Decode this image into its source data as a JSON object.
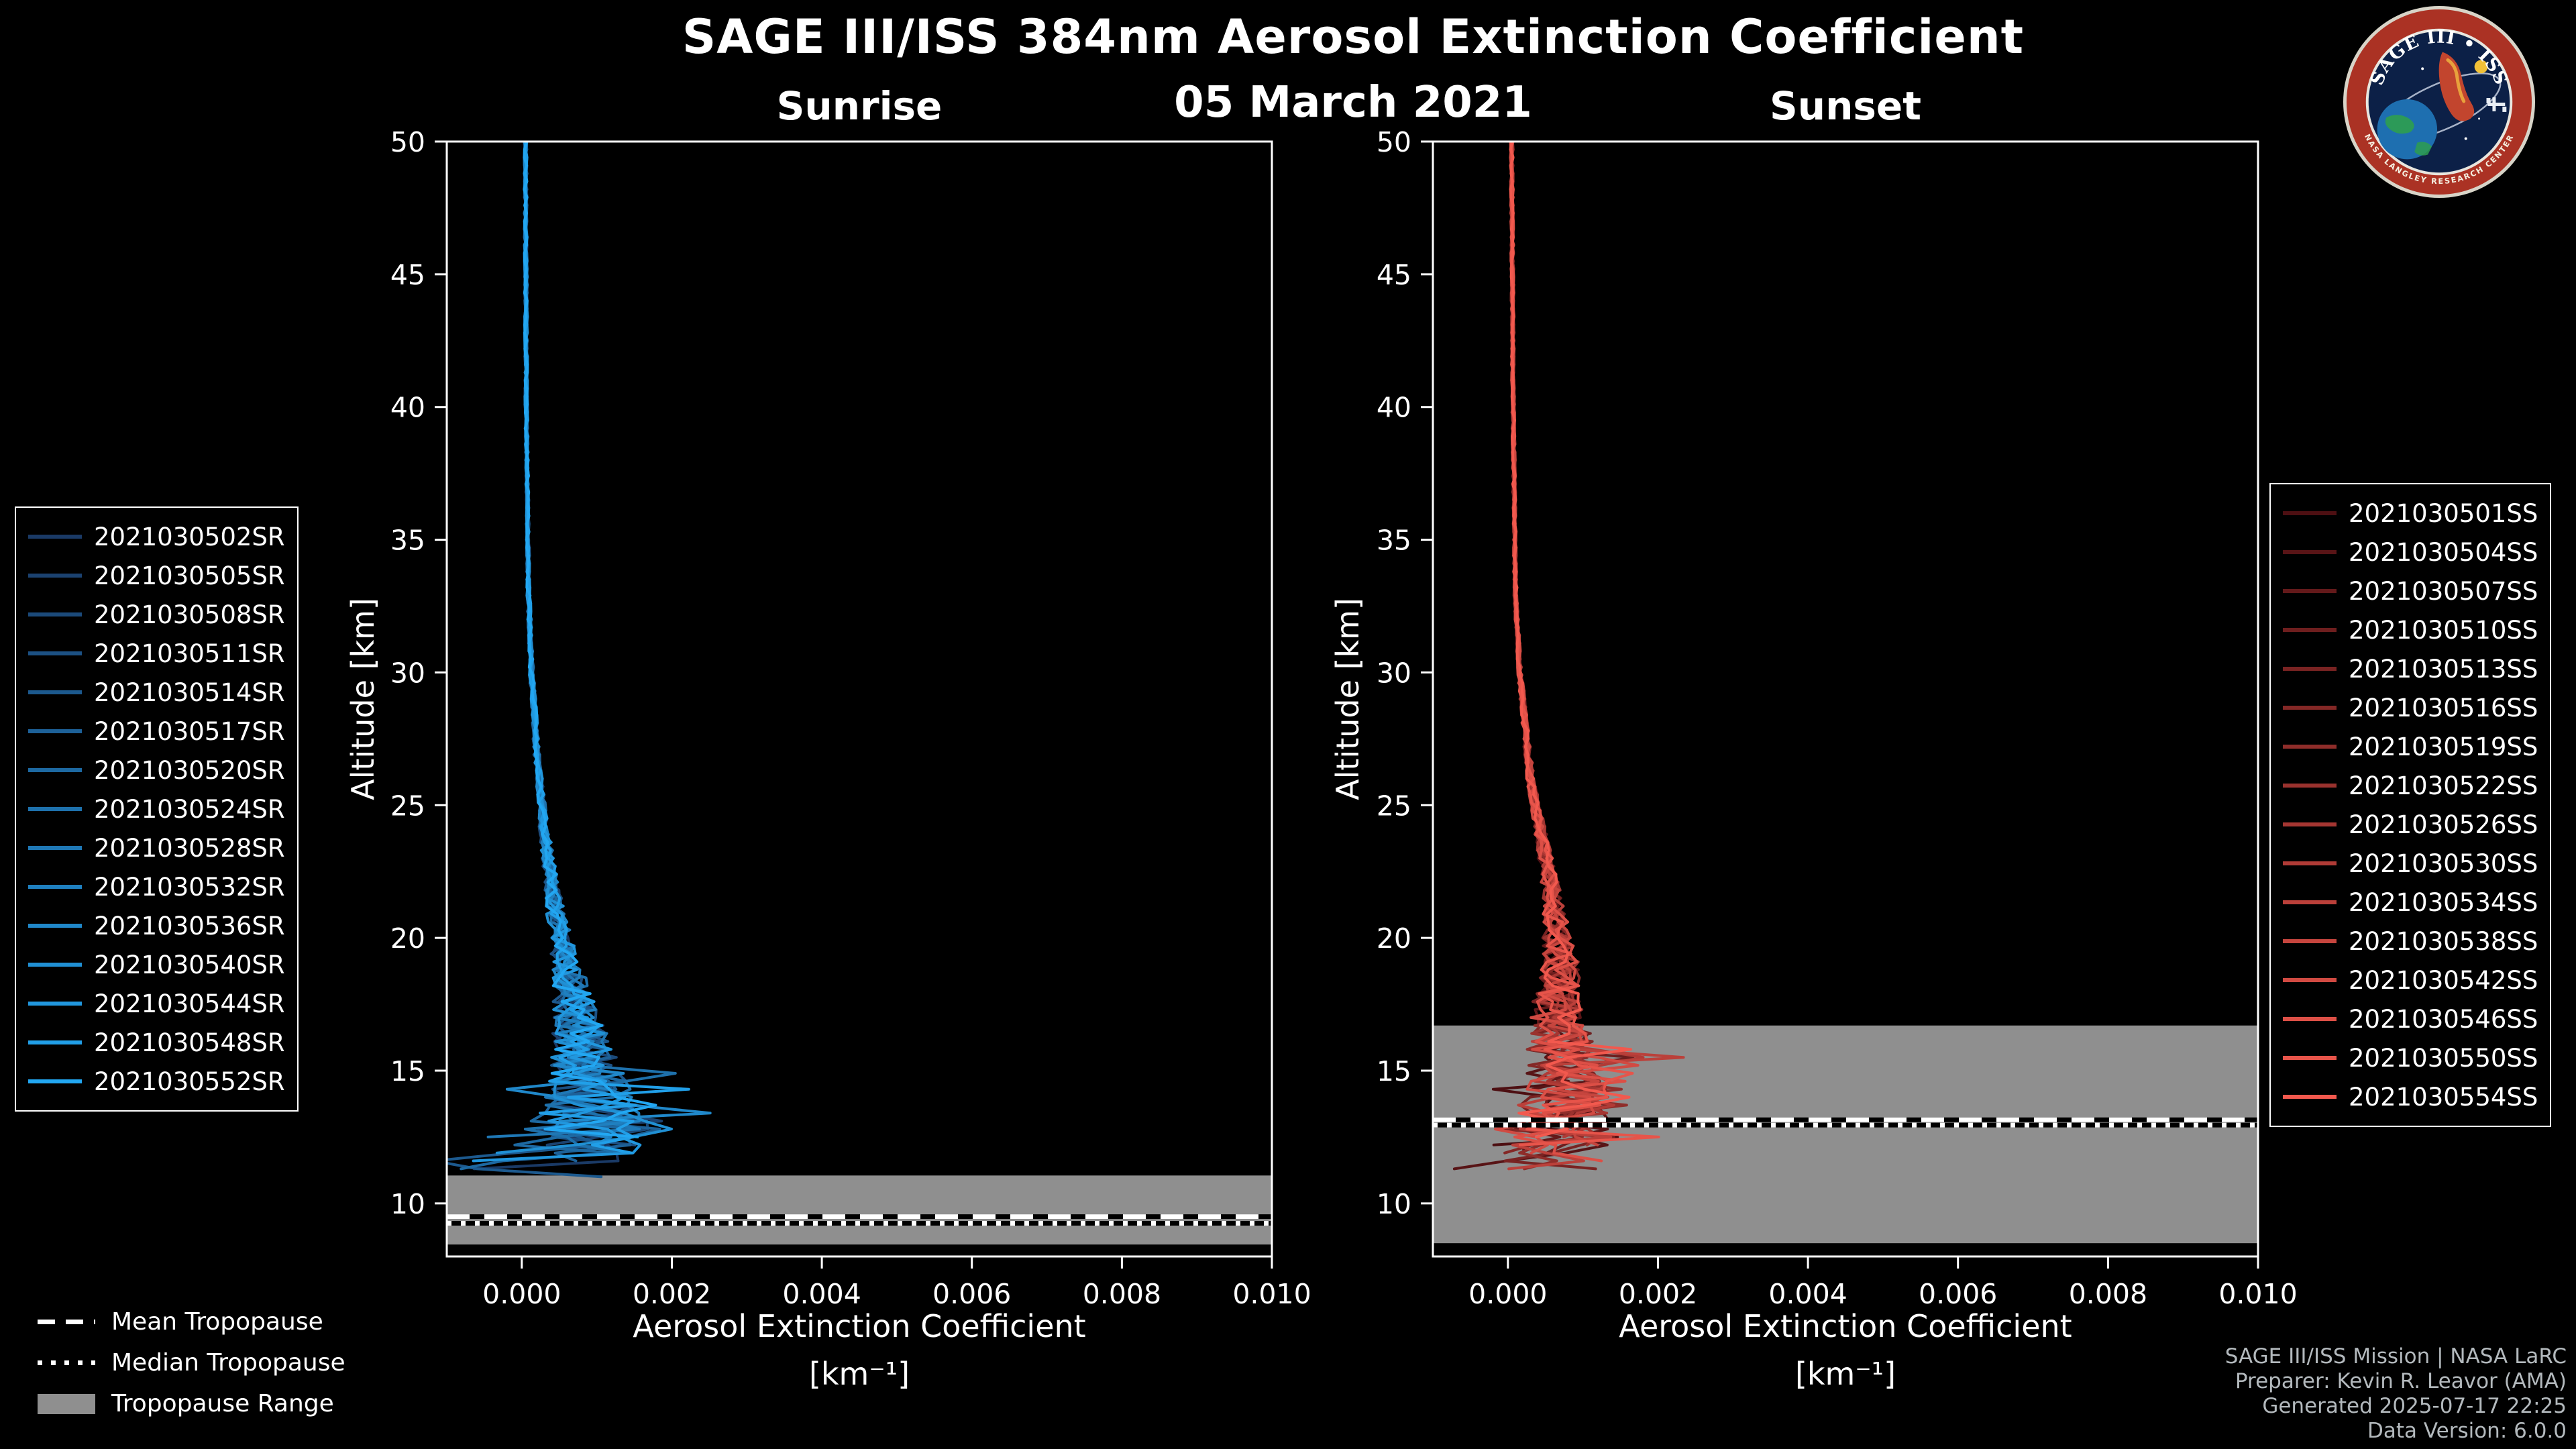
{
  "chart_data": {
    "type": "line",
    "title": "SAGE III/ISS 384nm Aerosol Extinction Coefficient",
    "subtitle": "05 March 2021",
    "x_axis": {
      "label": "Aerosol Extinction Coefficient",
      "units": "[km⁻¹]",
      "min": -0.001,
      "max": 0.01,
      "ticks": [
        0.0,
        0.002,
        0.004,
        0.006,
        0.008,
        0.01
      ]
    },
    "y_axis": {
      "label": "Altitude [km]",
      "min": 8,
      "max": 50,
      "ticks": [
        10,
        15,
        20,
        25,
        30,
        35,
        40,
        45,
        50
      ]
    },
    "band_color": "#8f8f8f",
    "panels": [
      {
        "id": "sunrise",
        "title": "Sunrise",
        "tropopause": {
          "mean_km": 9.5,
          "median_km": 9.25,
          "range_km": [
            8.45,
            11.05
          ],
          "band_color": "#8f8f8f"
        },
        "series": [
          {
            "label": "2021030502SR",
            "color": "#1a3a66"
          },
          {
            "label": "2021030505SR",
            "color": "#1b4270"
          },
          {
            "label": "2021030508SR",
            "color": "#1b4a7a"
          },
          {
            "label": "2021030511SR",
            "color": "#1c5184"
          },
          {
            "label": "2021030514SR",
            "color": "#1c598e"
          },
          {
            "label": "2021030517SR",
            "color": "#1d6198"
          },
          {
            "label": "2021030520SR",
            "color": "#1d69a2"
          },
          {
            "label": "2021030524SR",
            "color": "#1e71ac"
          },
          {
            "label": "2021030528SR",
            "color": "#1f78b6"
          },
          {
            "label": "2021030532SR",
            "color": "#1f80c0"
          },
          {
            "label": "2021030536SR",
            "color": "#2088ca"
          },
          {
            "label": "2021030540SR",
            "color": "#2090d4"
          },
          {
            "label": "2021030544SR",
            "color": "#2197de"
          },
          {
            "label": "2021030548SR",
            "color": "#219fe8"
          },
          {
            "label": "2021030552SR",
            "color": "#22a7f2"
          }
        ],
        "profile_shape": {
          "seed": 20210305,
          "min_alt_range": [
            10.9,
            12.6
          ],
          "spike_below": 15.5,
          "spike_amp": 0.0011,
          "base": [
            [
              50,
              5e-05
            ],
            [
              40,
              6e-05
            ],
            [
              33,
              9e-05
            ],
            [
              30,
              0.00013
            ],
            [
              27,
              0.0002
            ],
            [
              24,
              0.0003
            ],
            [
              21,
              0.00045
            ],
            [
              19,
              0.0006
            ],
            [
              17.5,
              0.0007
            ],
            [
              16,
              0.0008
            ],
            [
              15,
              0.00085
            ],
            [
              14,
              0.0009
            ],
            [
              13,
              0.0009
            ],
            [
              12.3,
              0.0007
            ],
            [
              11.5,
              0.0003
            ],
            [
              10.8,
              0.0001
            ]
          ],
          "noise": [
            [
              50,
              2e-05
            ],
            [
              35,
              2e-05
            ],
            [
              30,
              3e-05
            ],
            [
              25,
              5e-05
            ],
            [
              22,
              0.0001
            ],
            [
              20,
              0.00015
            ],
            [
              18,
              0.00025
            ],
            [
              16,
              0.0004
            ],
            [
              14.5,
              0.00055
            ],
            [
              13.5,
              0.0007
            ],
            [
              12.5,
              0.0009
            ],
            [
              11.5,
              0.0011
            ],
            [
              10.8,
              0.0012
            ]
          ]
        }
      },
      {
        "id": "sunset",
        "title": "Sunset",
        "tropopause": {
          "mean_km": 13.15,
          "median_km": 12.95,
          "range_km": [
            8.5,
            16.7
          ],
          "band_color": "#8f8f8f"
        },
        "series": [
          {
            "label": "2021030501SS",
            "color": "#4d0f12"
          },
          {
            "label": "2021030504SS",
            "color": "#581416"
          },
          {
            "label": "2021030507SS",
            "color": "#63191a"
          },
          {
            "label": "2021030510SS",
            "color": "#6e1e1e"
          },
          {
            "label": "2021030513SS",
            "color": "#792322"
          },
          {
            "label": "2021030516SS",
            "color": "#842826"
          },
          {
            "label": "2021030519SS",
            "color": "#8f2d2a"
          },
          {
            "label": "2021030522SS",
            "color": "#9a322e"
          },
          {
            "label": "2021030526SS",
            "color": "#a53632"
          },
          {
            "label": "2021030530SS",
            "color": "#b03b36"
          },
          {
            "label": "2021030534SS",
            "color": "#bb403a"
          },
          {
            "label": "2021030538SS",
            "color": "#c6453e"
          },
          {
            "label": "2021030542SS",
            "color": "#d14a42"
          },
          {
            "label": "2021030546SS",
            "color": "#dc4f46"
          },
          {
            "label": "2021030550SS",
            "color": "#e7544a"
          },
          {
            "label": "2021030554SS",
            "color": "#f2594e"
          }
        ],
        "profile_shape": {
          "seed": 3052021,
          "min_alt_range": [
            11.0,
            12.3
          ],
          "spike_below": 16.5,
          "spike_amp": 0.001,
          "base": [
            [
              50,
              5e-05
            ],
            [
              40,
              7e-05
            ],
            [
              33,
              0.0001
            ],
            [
              30,
              0.00016
            ],
            [
              26,
              0.0003
            ],
            [
              23,
              0.0005
            ],
            [
              21,
              0.00062
            ],
            [
              19,
              0.0007
            ],
            [
              17.5,
              0.00065
            ],
            [
              16,
              0.0007
            ],
            [
              15,
              0.00075
            ],
            [
              14,
              0.0008
            ],
            [
              13,
              0.0007
            ],
            [
              12,
              0.0005
            ],
            [
              11,
              0.0002
            ]
          ],
          "noise": [
            [
              50,
              2e-05
            ],
            [
              35,
              2e-05
            ],
            [
              30,
              3e-05
            ],
            [
              25,
              6e-05
            ],
            [
              22,
              0.00012
            ],
            [
              20,
              0.0002
            ],
            [
              18,
              0.0003
            ],
            [
              16,
              0.00045
            ],
            [
              14.5,
              0.00055
            ],
            [
              13.5,
              0.0007
            ],
            [
              12.5,
              0.0009
            ],
            [
              11,
              0.0011
            ]
          ]
        }
      }
    ],
    "tropopause_legend": [
      {
        "style": "dashed",
        "label": "Mean Tropopause"
      },
      {
        "style": "dotted",
        "label": "Median Tropopause"
      },
      {
        "style": "patch",
        "label": "Tropopause Range",
        "patch_color": "#8f8f8f"
      }
    ]
  },
  "branding": {
    "credits": [
      "SAGE III/ISS Mission | NASA LaRC",
      "Preparer: Kevin R. Leavor (AMA)",
      "Generated 2025-07-17 22:25",
      "Data Version: 6.0.0"
    ],
    "logo": {
      "title": "SAGE III • ISS",
      "ring_text": "NASA LANGLEY RESEARCH CENTER"
    }
  }
}
